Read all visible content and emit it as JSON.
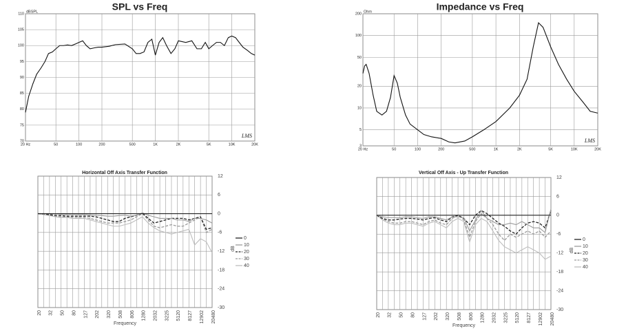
{
  "chart_data": [
    {
      "type": "line",
      "title": "SPL vs Freq",
      "y_unit": "dBSPL",
      "annotation": "LMS",
      "xscale": "log",
      "yscale": "linear",
      "grid": true,
      "color": "#111111",
      "x": [
        20,
        22,
        25,
        28,
        32,
        36,
        40,
        45,
        50,
        56,
        63,
        71,
        80,
        90,
        100,
        112,
        125,
        140,
        160,
        180,
        200,
        250,
        300,
        400,
        500,
        560,
        630,
        710,
        800,
        900,
        1000,
        1120,
        1250,
        1400,
        1600,
        1800,
        2000,
        2500,
        3000,
        3500,
        4000,
        4500,
        5000,
        5600,
        6300,
        7100,
        8000,
        9000,
        10000,
        11200,
        12500,
        14000,
        16000,
        18000,
        20000
      ],
      "values": [
        79,
        84,
        88,
        91,
        93,
        95,
        97.5,
        98,
        99,
        100,
        100,
        100.2,
        100,
        100.5,
        101,
        101.5,
        100,
        99,
        99.3,
        99.5,
        99.5,
        99.8,
        100.3,
        100.5,
        99,
        97.5,
        97.5,
        98,
        101,
        102,
        97,
        101,
        102.5,
        100,
        97.5,
        99,
        101.5,
        101,
        101.5,
        99,
        99,
        101,
        99,
        100,
        101,
        101,
        100,
        102.5,
        103,
        102.5,
        101,
        99.5,
        98.5,
        97.5,
        97
      ],
      "xlim": [
        20,
        20000
      ],
      "xticks": [
        {
          "value": 20,
          "label": "20 Hz"
        },
        50,
        100,
        200,
        500,
        {
          "value": 1000,
          "label": "1K"
        },
        {
          "value": 2000,
          "label": "2K"
        },
        {
          "value": 5000,
          "label": "5K"
        },
        {
          "value": 10000,
          "label": "10K"
        },
        {
          "value": 20000,
          "label": "20K"
        }
      ],
      "ylim": [
        70,
        110
      ],
      "yticks": [
        70,
        75,
        80,
        85,
        90,
        95,
        100,
        105,
        110
      ]
    },
    {
      "type": "line",
      "title": "Impedance vs Freq",
      "y_unit": "Ohm",
      "annotation": "LMS",
      "xscale": "log",
      "yscale": "log",
      "grid": true,
      "color": "#111111",
      "x": [
        20,
        21,
        22,
        24,
        27,
        30,
        35,
        40,
        45,
        50,
        55,
        60,
        70,
        80,
        100,
        120,
        150,
        200,
        250,
        300,
        400,
        500,
        700,
        1000,
        1500,
        2000,
        2500,
        3000,
        3500,
        4000,
        5000,
        6300,
        8000,
        10000,
        13000,
        16000,
        20000
      ],
      "values": [
        30,
        38,
        40,
        30,
        15,
        9,
        8,
        9,
        14,
        28,
        22,
        14,
        8,
        6,
        5,
        4.3,
        4,
        3.8,
        3.4,
        3.3,
        3.5,
        4,
        5,
        6.5,
        10,
        15,
        25,
        70,
        150,
        130,
        70,
        40,
        25,
        17,
        12,
        9,
        8.5
      ],
      "xlim": [
        20,
        20000
      ],
      "xticks": [
        {
          "value": 20,
          "label": "20 Hz"
        },
        50,
        100,
        200,
        500,
        {
          "value": 1000,
          "label": "1K"
        },
        {
          "value": 2000,
          "label": "2K"
        },
        {
          "value": 5000,
          "label": "5K"
        },
        {
          "value": 10000,
          "label": "10K"
        },
        {
          "value": 20000,
          "label": "20K"
        }
      ],
      "ylim": [
        3,
        200
      ],
      "yticks": [
        3,
        5,
        10,
        20,
        50,
        100,
        200
      ]
    },
    {
      "type": "line",
      "title": "Horizontal Off Axis Transfer Function",
      "x_label": "Frequency",
      "y_label": "dB",
      "yaxis_side": "right",
      "grid": true,
      "categories": [
        "20",
        null,
        "32",
        null,
        "50",
        null,
        "80",
        null,
        "127",
        null,
        "202",
        null,
        "320",
        null,
        "508",
        null,
        "806",
        null,
        "1280",
        null,
        "2032",
        null,
        "3225",
        null,
        "5120",
        null,
        "8127",
        null,
        "12902",
        null,
        "20480"
      ],
      "ylim": [
        -30,
        12
      ],
      "yticks": [
        12,
        6,
        0,
        -6,
        -12,
        -18,
        -24,
        -30
      ],
      "series": [
        {
          "name": "0",
          "color": "#222222",
          "dashed": false,
          "values": [
            0,
            0,
            0,
            0,
            0,
            0,
            0,
            0,
            0,
            0,
            0,
            0,
            0,
            0,
            0,
            0,
            0,
            0,
            0,
            0,
            0,
            0,
            0,
            0,
            0,
            0,
            0,
            0,
            0,
            0,
            0
          ]
        },
        {
          "name": "10",
          "color": "#9a9a9a",
          "dashed": false,
          "values": [
            0,
            0,
            0,
            0,
            -0.2,
            -0.3,
            -0.3,
            -0.3,
            -0.3,
            -0.4,
            -0.5,
            -0.6,
            -0.8,
            -0.8,
            -0.6,
            -0.5,
            -0.8,
            -0.5,
            0.3,
            -0.5,
            -1,
            -1.5,
            -1.5,
            -1.5,
            -2,
            -2,
            -2.5,
            -1.5,
            -1.5,
            -2,
            -3
          ]
        },
        {
          "name": "20",
          "color": "#222222",
          "dashed": true,
          "values": [
            0,
            0,
            -0.3,
            -0.5,
            -0.6,
            -0.8,
            -0.8,
            -0.8,
            -0.8,
            -0.8,
            -1,
            -1.5,
            -2,
            -2.5,
            -2.5,
            -1.5,
            -1,
            -0.5,
            0.2,
            -1.5,
            -3,
            -2.5,
            -2,
            -1.5,
            -1.5,
            -1.5,
            -2,
            -1.5,
            -1,
            -5,
            -4.5
          ]
        },
        {
          "name": "30",
          "color": "#9a9a9a",
          "dashed": true,
          "values": [
            0,
            -0.2,
            -0.5,
            -0.8,
            -1,
            -1,
            -1.2,
            -1.2,
            -1.2,
            -1.5,
            -2,
            -2.5,
            -3,
            -3,
            -3,
            -2.5,
            -2,
            -1,
            0,
            -2,
            -4,
            -4.5,
            -4,
            -3.5,
            -4,
            -4,
            -3,
            -2,
            -1,
            -6,
            -5
          ]
        },
        {
          "name": "40",
          "color": "#bdbdbd",
          "dashed": false,
          "values": [
            0,
            -0.3,
            -0.6,
            -1,
            -1.2,
            -1.2,
            -1.5,
            -1.5,
            -1.5,
            -2,
            -2.5,
            -3,
            -3.5,
            -4,
            -4,
            -3.5,
            -3,
            -2,
            -1,
            -3,
            -4.5,
            -5.5,
            -6,
            -6.5,
            -6,
            -5.5,
            -5,
            -10,
            -8,
            -9,
            -12.5
          ]
        }
      ]
    },
    {
      "type": "line",
      "title": "Vertical Off Axis - Up Transfer Function",
      "x_label": "Frequency",
      "y_label": "dB",
      "yaxis_side": "right",
      "grid": true,
      "categories": [
        "20",
        null,
        "32",
        null,
        "50",
        null,
        "80",
        null,
        "127",
        null,
        "202",
        null,
        "320",
        null,
        "508",
        null,
        "806",
        null,
        "1280",
        null,
        "2032",
        null,
        "3225",
        null,
        "5120",
        null,
        "8127",
        null,
        "12902",
        null,
        "20480"
      ],
      "ylim": [
        -30,
        12
      ],
      "yticks": [
        12,
        6,
        0,
        -6,
        -12,
        -18,
        -24,
        -30
      ],
      "series": [
        {
          "name": "0",
          "color": "#222222",
          "dashed": false,
          "values": [
            0,
            0,
            0,
            0,
            0,
            0,
            0,
            0,
            0,
            0,
            0,
            0,
            0,
            0,
            0,
            0,
            0,
            0,
            0,
            0,
            0,
            0,
            0,
            0,
            0,
            0,
            0,
            0,
            0,
            0,
            0
          ]
        },
        {
          "name": "10",
          "color": "#9a9a9a",
          "dashed": false,
          "values": [
            0,
            -0.5,
            -0.8,
            -0.8,
            -0.8,
            -0.5,
            -0.5,
            -0.8,
            -1,
            -0.5,
            -0.5,
            -1,
            -1.5,
            -0.5,
            -0.5,
            -0.8,
            -5,
            -1.5,
            1.5,
            -1,
            -2,
            -3,
            -3,
            -2.5,
            -3,
            -2,
            -3,
            -4,
            -4,
            -5.5,
            2
          ]
        },
        {
          "name": "20",
          "color": "#222222",
          "dashed": true,
          "values": [
            0,
            -1,
            -1.5,
            -1.5,
            -1.2,
            -1,
            -1,
            -1.2,
            -1.5,
            -1,
            -0.8,
            -1.5,
            -2,
            -0.5,
            0,
            -1,
            -3,
            0,
            1.5,
            0.5,
            -1,
            -2.5,
            -3.5,
            -5,
            -6,
            -4,
            -2.5,
            -2,
            -2.5,
            -4,
            1.5
          ]
        },
        {
          "name": "30",
          "color": "#9a9a9a",
          "dashed": true,
          "values": [
            0,
            -1.2,
            -2,
            -2.5,
            -2.5,
            -2,
            -2,
            -2.5,
            -3,
            -2,
            -1.5,
            -2.5,
            -3,
            -1,
            0,
            -1.5,
            -7,
            -2,
            0.5,
            -1,
            -3,
            -6,
            -8,
            -6,
            -7,
            -6,
            -5,
            -6,
            -5,
            -7,
            -5
          ]
        },
        {
          "name": "40",
          "color": "#bdbdbd",
          "dashed": false,
          "values": [
            0,
            -1.5,
            -2.5,
            -3,
            -3,
            -2.5,
            -2.5,
            -3,
            -3.5,
            -2.5,
            -2,
            -3,
            -4,
            -2,
            -1,
            -2,
            -8.5,
            -3,
            -1,
            -2,
            -5,
            -8,
            -10,
            -11,
            -12,
            -11,
            -10,
            -11,
            -12,
            -14,
            -13
          ]
        }
      ]
    }
  ]
}
